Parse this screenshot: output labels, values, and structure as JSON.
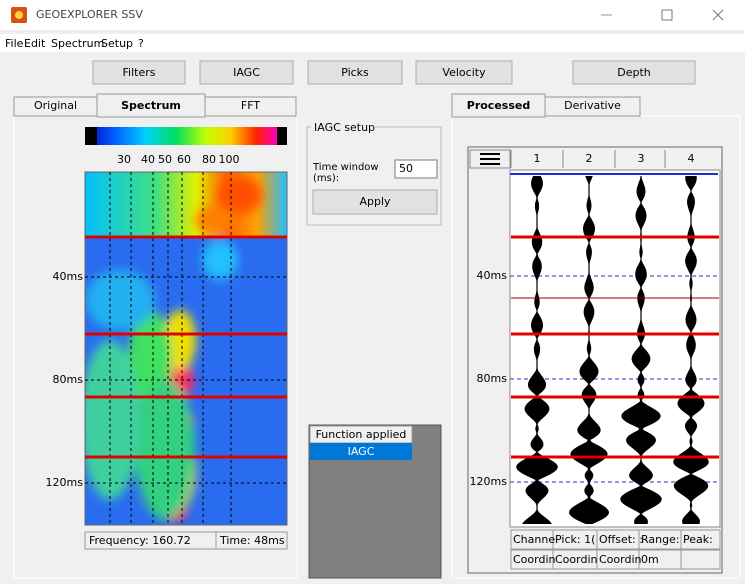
{
  "title_bar": {
    "title": "GEOEXPLORER SSV"
  },
  "menu": [
    "File",
    "Edit",
    "Spectrum",
    "Setup",
    "?"
  ],
  "toolbar": [
    "Filters",
    "IAGC",
    "Picks",
    "Velocity",
    "Depth"
  ],
  "left_panel": {
    "tabs": [
      "Original",
      "Spectrum",
      "FFT"
    ],
    "colorbar_labels": [
      "30",
      "40",
      "50",
      "60",
      "80",
      "100"
    ],
    "time_labels": [
      "40ms",
      "80ms",
      "120ms"
    ],
    "status": [
      "Frequency: 160.72",
      "Time: 48ms"
    ]
  },
  "iagc_setup": {
    "title": "IAGC setup",
    "time_window_label": [
      "Time window",
      "(ms):"
    ],
    "time_window_value": "50",
    "apply": "Apply"
  },
  "function_list": {
    "header": "Function applied",
    "items": [
      "IAGC"
    ]
  },
  "right_panel": {
    "tabs": [
      "Processed",
      "Derivative"
    ],
    "channels": [
      "1",
      "2",
      "3",
      "4"
    ],
    "time_labels": [
      "40ms",
      "80ms",
      "120ms"
    ],
    "footer": [
      [
        "Channe",
        "Pick: 1(",
        "Offset: :",
        "Range:",
        "Peak:"
      ],
      [
        "Coordin",
        "Coordin",
        "Coordin",
        "0m"
      ]
    ]
  }
}
